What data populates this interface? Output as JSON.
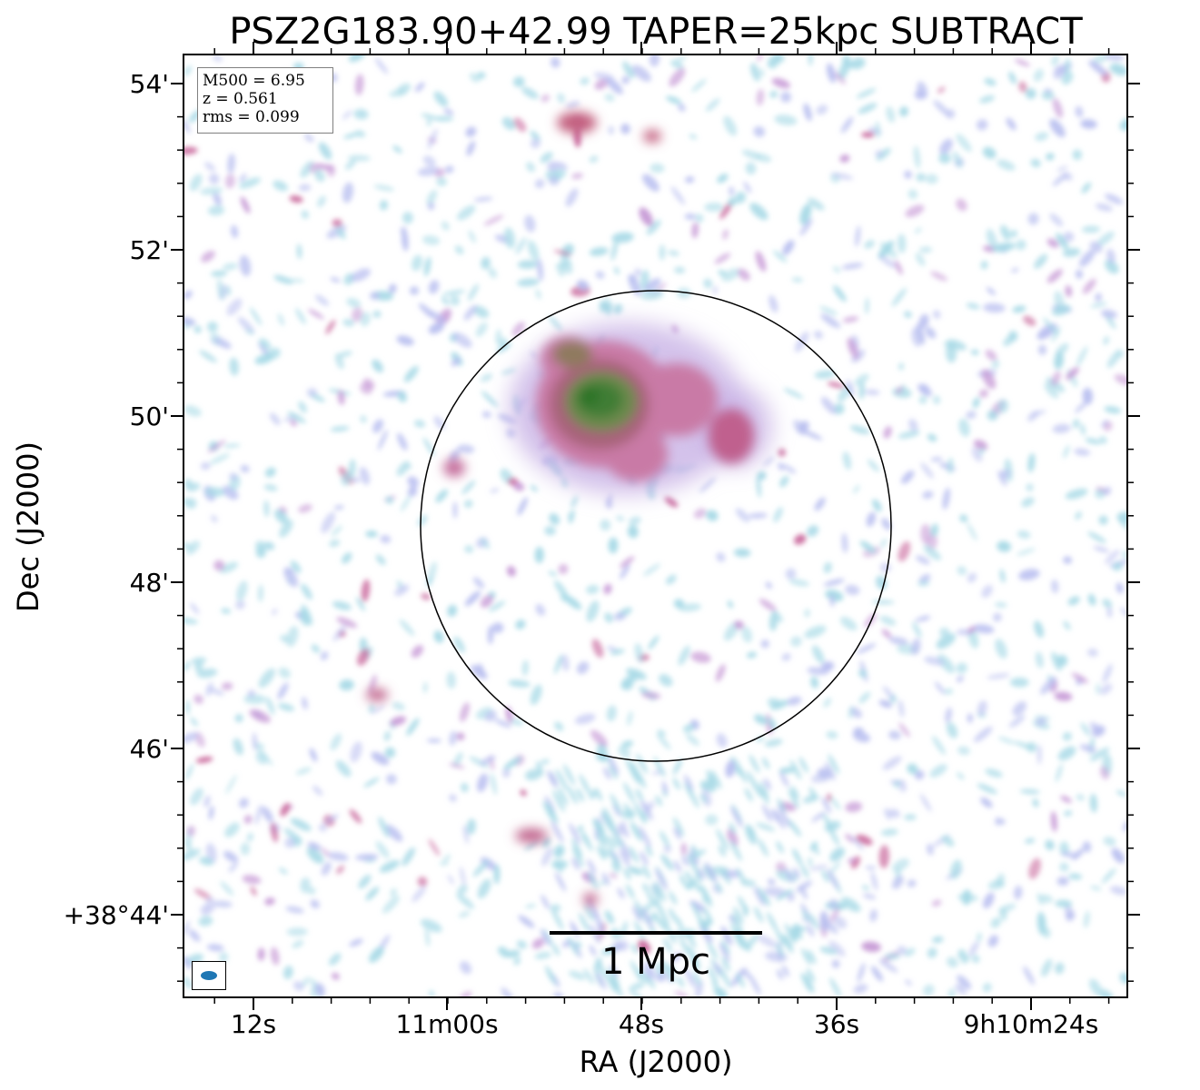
{
  "title": "PSZ2G183.90+42.99 TAPER=25kpc SUBTRACT",
  "axes": {
    "xlabel": "RA (J2000)",
    "ylabel": "Dec (J2000)",
    "xticks": [
      "12s",
      "11m00s",
      "48s",
      "36s",
      "9h10m24s"
    ],
    "yticks": [
      "54'",
      "52'",
      "50'",
      "48'",
      "46'",
      "+38°44'"
    ]
  },
  "info": {
    "mass": "M500 = 6.95",
    "redshift": "z = 0.561",
    "rms": "rms = 0.099"
  },
  "scalebar": {
    "label": "1 Mpc"
  },
  "colormap": [
    "#a6d9e6",
    "#b9bff0",
    "#c79ad6",
    "#c9689c",
    "#b35a7a",
    "#6f8a52",
    "#2f7a2f"
  ],
  "features": [
    "diffuse-radio-emission",
    "r500-circle",
    "beam-ellipse",
    "scale-bar"
  ]
}
